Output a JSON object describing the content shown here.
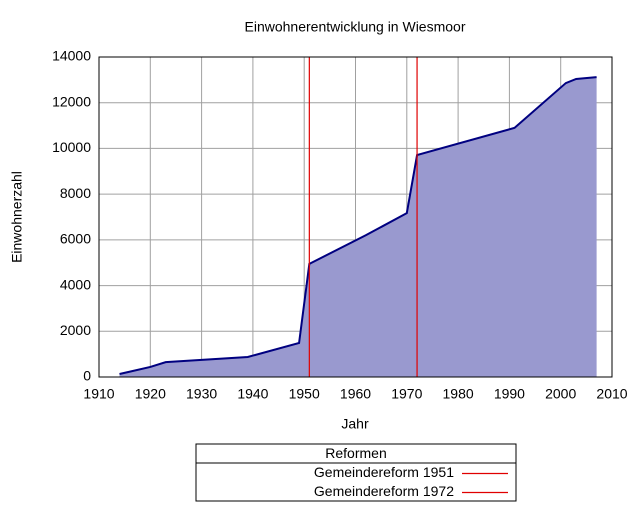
{
  "chart_data": {
    "type": "area",
    "title": "Einwohnerentwicklung in Wiesmoor",
    "x_label": "Jahr",
    "y_label": "Einwohnerzahl",
    "x": [
      1914,
      1920,
      1923,
      1939,
      1949,
      1951,
      1962,
      1970,
      1972,
      1991,
      2001,
      2003,
      2007
    ],
    "values": [
      130,
      440,
      650,
      875,
      1490,
      4950,
      6200,
      7170,
      9710,
      10900,
      12860,
      13040,
      13120
    ],
    "fill_color": "#9999cf",
    "line_color": "#000080",
    "xlim": [
      1910,
      2010
    ],
    "xticks": [
      1910,
      1920,
      1930,
      1940,
      1950,
      1960,
      1970,
      1980,
      1990,
      2000,
      2010
    ],
    "ylim": [
      0,
      14000
    ],
    "yticks": [
      0,
      2000,
      4000,
      6000,
      8000,
      10000,
      12000,
      14000
    ],
    "grid": true,
    "vlines": [
      {
        "name": "Gemeindereform 1951",
        "x": 1951,
        "color": "#e00000"
      },
      {
        "name": "Gemeindereform 1972",
        "x": 1972,
        "color": "#e00000"
      }
    ],
    "legend": {
      "title": "Reformen",
      "position": "bottom"
    }
  }
}
